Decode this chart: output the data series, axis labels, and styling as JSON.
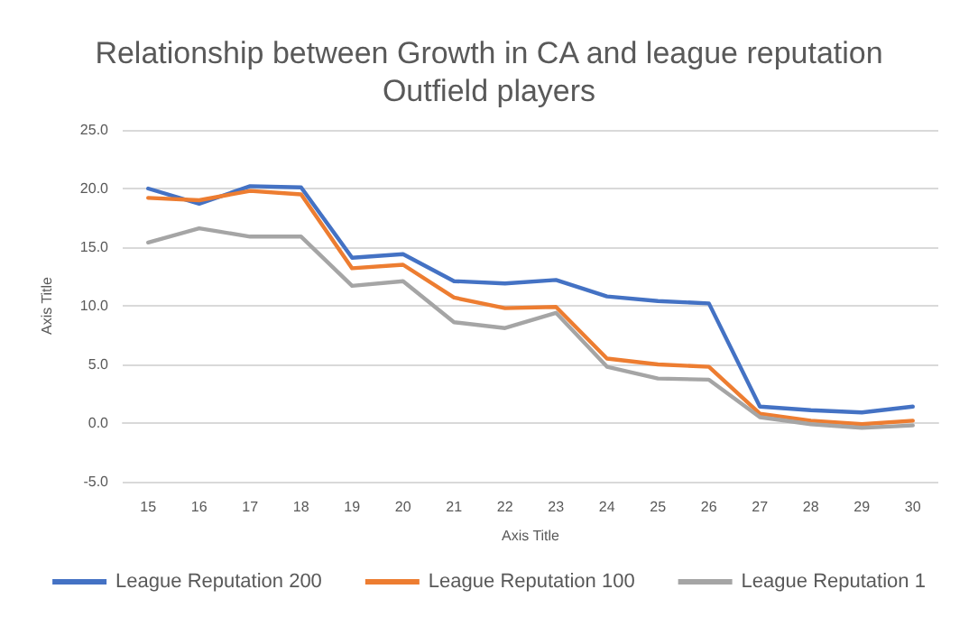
{
  "chart_data": {
    "type": "line",
    "title": "Relationship between Growth in CA and league reputation",
    "subtitle": "Outfield players",
    "xlabel": "Axis Title",
    "ylabel": "Axis Title",
    "categories": [
      "15",
      "16",
      "17",
      "18",
      "19",
      "20",
      "21",
      "22",
      "23",
      "24",
      "25",
      "26",
      "27",
      "28",
      "29",
      "30"
    ],
    "series": [
      {
        "name": "League Reputation 200",
        "color": "#4472c4",
        "values": [
          20.0,
          18.7,
          20.2,
          20.1,
          14.1,
          14.4,
          12.1,
          11.9,
          12.2,
          10.8,
          10.4,
          10.2,
          1.4,
          1.1,
          0.9,
          1.4
        ]
      },
      {
        "name": "League Reputation 100",
        "color": "#ed7d31",
        "values": [
          19.2,
          19.0,
          19.8,
          19.5,
          13.2,
          13.5,
          10.7,
          9.8,
          9.9,
          5.5,
          5.0,
          4.8,
          0.8,
          0.2,
          -0.1,
          0.2
        ]
      },
      {
        "name": "League Reputation 1",
        "color": "#a5a5a5",
        "values": [
          15.4,
          16.6,
          15.9,
          15.9,
          11.7,
          12.1,
          8.6,
          8.1,
          9.4,
          4.8,
          3.8,
          3.7,
          0.5,
          -0.1,
          -0.4,
          -0.2
        ]
      }
    ],
    "ylim": [
      -5,
      25
    ],
    "yticks": [
      {
        "value": -5,
        "label": "-5.0"
      },
      {
        "value": 0,
        "label": "0.0"
      },
      {
        "value": 5,
        "label": "5.0"
      },
      {
        "value": 10,
        "label": "10.0"
      },
      {
        "value": 15,
        "label": "15.0"
      },
      {
        "value": 20,
        "label": "20.0"
      },
      {
        "value": 25,
        "label": "25.0"
      }
    ],
    "grid": "y",
    "legend": "bottom",
    "marker": "none",
    "line_style": "solid"
  }
}
